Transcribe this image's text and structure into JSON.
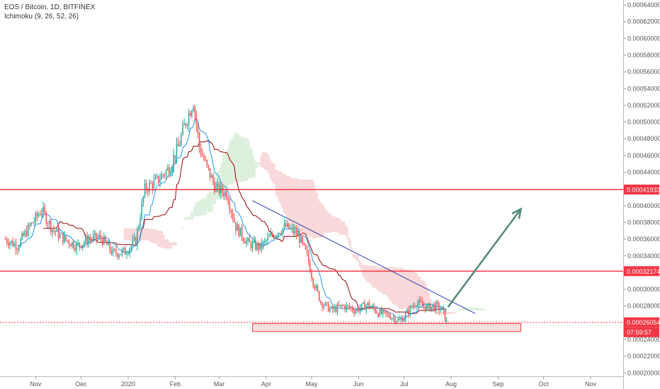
{
  "legend": {
    "symbol": "EOS / Bitcoin, 1D, BITFINEX",
    "indicator": "Ichimoku (9, 26, 52, 26)"
  },
  "colors": {
    "up": "#26a69a",
    "down": "#ef5350",
    "tenkan": "#2196f3",
    "kijun": "#990000",
    "cloud_bull": "#a5d6a7",
    "cloud_bear": "#ef9a9a",
    "level": "#f23645",
    "trend": "#3140b2",
    "arrow": "#4f8a78",
    "axis_text": "#555555"
  },
  "chart_data": {
    "type": "candlestick",
    "title": "EOS / Bitcoin, 1D, BITFINEX",
    "indicator": "Ichimoku (9, 26, 52, 26)",
    "x_ticks": [
      "Nov",
      "Dec",
      "2020",
      "Feb",
      "Mar",
      "Apr",
      "May",
      "Jun",
      "Jul",
      "Aug",
      "Sep",
      "Oct",
      "Nov"
    ],
    "y_ticks": [
      "0.00064000",
      "0.00062000",
      "0.00060000",
      "0.00058000",
      "0.00056000",
      "0.00054000",
      "0.00052000",
      "0.00050000",
      "0.00048000",
      "0.00046000",
      "0.00044000",
      "0.00042000",
      "0.00040000",
      "0.00038000",
      "0.00036000",
      "0.00034000",
      "0.00032000",
      "0.00030000",
      "0.00028000",
      "0.00026000",
      "0.00024000",
      "0.00022000",
      "0.00020000"
    ],
    "ylim": [
      0.000196,
      0.000646
    ],
    "horizontal_levels": [
      {
        "value": 0.00041933,
        "label": "0.00041933"
      },
      {
        "value": 0.00032174,
        "label": "0.00032174"
      }
    ],
    "current_price": {
      "value": 0.00026054,
      "label": "0.00026054",
      "countdown": "07:59:57"
    },
    "support_zone": {
      "x_start": "2020-03-23",
      "x_end": "2020-09-16",
      "y_low": 0.0002495,
      "y_high": 0.000259
    },
    "trendline": {
      "start": {
        "x": "2020-03-23",
        "y": 0.000406
      },
      "end": {
        "x": "2020-08-17",
        "y": 0.000271
      }
    },
    "projection_arrow": {
      "start": {
        "x": "2020-07-30",
        "y": 0.000279
      },
      "end": {
        "x": "2020-09-16",
        "y": 0.000396
      }
    },
    "price_path": [
      {
        "x": "2019-10-12",
        "y": 0.00036
      },
      {
        "x": "2019-10-20",
        "y": 0.000352
      },
      {
        "x": "2019-10-28",
        "y": 0.000375
      },
      {
        "x": "2019-11-05",
        "y": 0.000395
      },
      {
        "x": "2019-11-12",
        "y": 0.000372
      },
      {
        "x": "2019-11-20",
        "y": 0.00036
      },
      {
        "x": "2019-11-28",
        "y": 0.000352
      },
      {
        "x": "2019-12-06",
        "y": 0.00036
      },
      {
        "x": "2019-12-14",
        "y": 0.000362
      },
      {
        "x": "2019-12-22",
        "y": 0.000343
      },
      {
        "x": "2019-12-30",
        "y": 0.000345
      },
      {
        "x": "2020-01-06",
        "y": 0.000358
      },
      {
        "x": "2020-01-12",
        "y": 0.00042
      },
      {
        "x": "2020-01-20",
        "y": 0.00043
      },
      {
        "x": "2020-01-28",
        "y": 0.000445
      },
      {
        "x": "2020-02-03",
        "y": 0.00047
      },
      {
        "x": "2020-02-07",
        "y": 0.000495
      },
      {
        "x": "2020-02-13",
        "y": 0.000525
      },
      {
        "x": "2020-02-17",
        "y": 0.00047
      },
      {
        "x": "2020-02-22",
        "y": 0.000445
      },
      {
        "x": "2020-02-28",
        "y": 0.00042
      },
      {
        "x": "2020-03-06",
        "y": 0.000415
      },
      {
        "x": "2020-03-12",
        "y": 0.000375
      },
      {
        "x": "2020-03-20",
        "y": 0.000355
      },
      {
        "x": "2020-03-28",
        "y": 0.00035
      },
      {
        "x": "2020-04-05",
        "y": 0.000365
      },
      {
        "x": "2020-04-14",
        "y": 0.000375
      },
      {
        "x": "2020-04-22",
        "y": 0.000365
      },
      {
        "x": "2020-04-28",
        "y": 0.00034
      },
      {
        "x": "2020-05-02",
        "y": 0.00031
      },
      {
        "x": "2020-05-07",
        "y": 0.000285
      },
      {
        "x": "2020-05-14",
        "y": 0.000275
      },
      {
        "x": "2020-05-22",
        "y": 0.00028
      },
      {
        "x": "2020-05-30",
        "y": 0.000275
      },
      {
        "x": "2020-06-07",
        "y": 0.000282
      },
      {
        "x": "2020-06-14",
        "y": 0.000272
      },
      {
        "x": "2020-06-22",
        "y": 0.000268
      },
      {
        "x": "2020-06-28",
        "y": 0.000262
      },
      {
        "x": "2020-07-03",
        "y": 0.000272
      },
      {
        "x": "2020-07-09",
        "y": 0.000285
      },
      {
        "x": "2020-07-16",
        "y": 0.000278
      },
      {
        "x": "2020-07-22",
        "y": 0.00028
      },
      {
        "x": "2020-07-26",
        "y": 0.000275
      },
      {
        "x": "2020-07-29",
        "y": 0.000261
      }
    ]
  }
}
